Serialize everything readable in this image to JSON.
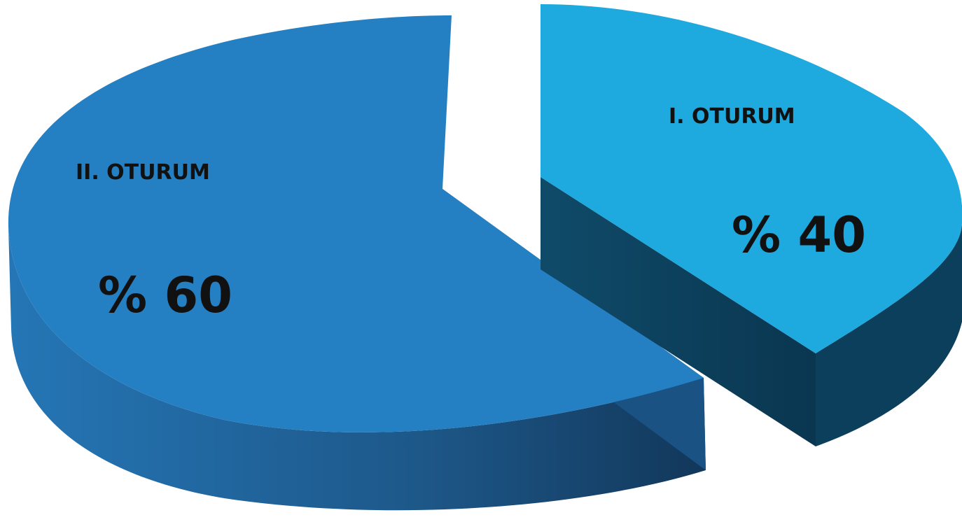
{
  "chart_data": {
    "type": "pie",
    "style": "3d-exploded",
    "slices": [
      {
        "label": "I. OTURUM",
        "value": 40,
        "value_label": "% 40",
        "color": "#1ea9df",
        "side_color": "#0d4560"
      },
      {
        "label": "II. OTURUM",
        "value": 60,
        "value_label": "% 60",
        "color": "#2580c3",
        "side_color": "#1c5b8c"
      }
    ],
    "legend": "none"
  }
}
